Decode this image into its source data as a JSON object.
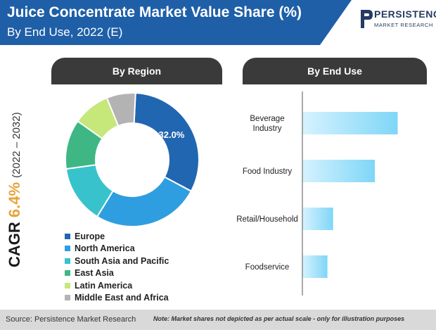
{
  "header": {
    "title": "Juice Concentrate Market Value Share (%)",
    "subtitle": "By End Use, 2022 (E)",
    "band_color": "#1f5fa8"
  },
  "logo": {
    "name": "PERSISTENCE",
    "tagline": "MARKET RESEARCH"
  },
  "cagr": {
    "label": "CAGR",
    "value": "6.4%",
    "period": "(2022 – 2032)"
  },
  "chart_data": [
    {
      "type": "pie",
      "title": "By Region",
      "categories": [
        "Europe",
        "North America",
        "South Asia and Pacific",
        "East Asia",
        "Latin America",
        "Middle East and Africa"
      ],
      "values": [
        32.0,
        26.0,
        14.0,
        12.0,
        9.0,
        7.0
      ],
      "colors": [
        "#2166b0",
        "#2e9ee0",
        "#38c3cc",
        "#3eb784",
        "#c6e77a",
        "#b3b3b3"
      ],
      "data_labels": [
        "32.0%",
        "",
        "",
        "",
        "",
        ""
      ],
      "legend": "bottom"
    },
    {
      "type": "bar",
      "orientation": "horizontal",
      "title": "By End Use",
      "categories": [
        "Beverage Industry",
        "Food Industry",
        "Retail/Household",
        "Foodservice"
      ],
      "values": [
        100,
        76,
        32,
        26
      ],
      "xlim": [
        0,
        100
      ],
      "grid": false,
      "color_from": "#d6f2ff",
      "color_to": "#7fd6f7"
    }
  ],
  "footer": {
    "source": "Source: Persistence Market Research",
    "note": "Note: Market shares not depicted as per actual scale - only for illustration purposes"
  }
}
